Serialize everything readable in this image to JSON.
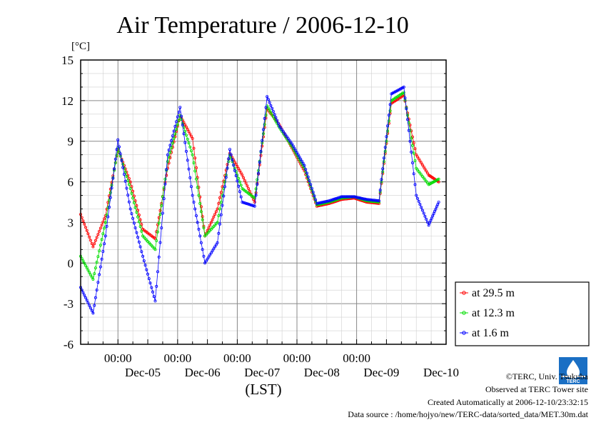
{
  "title": "Air Temperature / 2006-12-10",
  "ylabel": "[°C]",
  "xlabel": "(LST)",
  "credits": {
    "copyright": "©TERC, Univ. Tsukuba",
    "site": "Observed at TERC Tower site",
    "created": "Created Automatically at 2006-12-10/23:32:15",
    "source": "Data source : /home/hojyo/new/TERC-data/sorted_data/MET.30m.dat"
  },
  "logo_text": "TERC",
  "colors": {
    "at_29_5": "#ff0000",
    "at_12_3": "#00ee00",
    "at_1_6": "#0000ff",
    "grid": "#999999"
  },
  "chart_data": {
    "type": "line",
    "title": "Air Temperature / 2006-12-10",
    "ylabel": "[°C]",
    "xlabel": "(LST)",
    "ylim": [
      -6,
      15
    ],
    "yticks": [
      15,
      12,
      9,
      6,
      3,
      0,
      -3,
      -6
    ],
    "xlim": [
      "2006-12-04 09:00",
      "2006-12-10 12:00"
    ],
    "x_time_ticks": [
      "00:00",
      "00:00",
      "00:00",
      "00:00",
      "00:00"
    ],
    "x_date_labels": [
      "Dec-05",
      "Dec-06",
      "Dec-07",
      "Dec-08",
      "Dec-09",
      "Dec-10"
    ],
    "grid": true,
    "legend_position": "right",
    "x_hours": [
      0,
      5,
      10,
      15,
      20,
      25,
      30,
      35,
      40,
      45,
      50,
      55,
      60,
      65,
      70,
      75,
      80,
      85,
      90,
      95,
      100,
      105,
      110,
      115,
      120,
      125,
      130,
      135,
      140,
      144
    ],
    "series": [
      {
        "name": "at 29.5 m",
        "color": "#ff0000",
        "values": [
          3.6,
          1.2,
          3.5,
          8.4,
          6.0,
          2.5,
          1.8,
          7.0,
          10.9,
          9.2,
          2.0,
          4.0,
          8.1,
          6.5,
          4.5,
          11.4,
          10.2,
          8.5,
          6.8,
          4.2,
          4.4,
          4.7,
          4.8,
          4.5,
          4.4,
          11.8,
          12.4,
          8.0,
          6.5,
          6.0
        ]
      },
      {
        "name": "at 12.3 m",
        "color": "#00dd00",
        "values": [
          0.5,
          -1.2,
          3.0,
          8.5,
          5.5,
          2.0,
          1.0,
          7.5,
          10.9,
          8.0,
          2.0,
          3.0,
          8.0,
          5.5,
          4.8,
          11.6,
          10.0,
          8.6,
          7.0,
          4.3,
          4.5,
          4.8,
          4.9,
          4.6,
          4.5,
          12.0,
          12.6,
          7.0,
          5.8,
          6.2
        ]
      },
      {
        "name": "at 1.6 m",
        "color": "#0000ff",
        "values": [
          -1.8,
          -3.7,
          2.0,
          9.1,
          4.0,
          0.5,
          -2.8,
          8.0,
          11.5,
          5.0,
          0.0,
          1.5,
          8.4,
          4.5,
          4.2,
          12.3,
          10.1,
          8.8,
          7.2,
          4.4,
          4.6,
          4.9,
          4.9,
          4.7,
          4.6,
          12.5,
          13.0,
          5.0,
          2.8,
          4.5
        ]
      }
    ]
  }
}
